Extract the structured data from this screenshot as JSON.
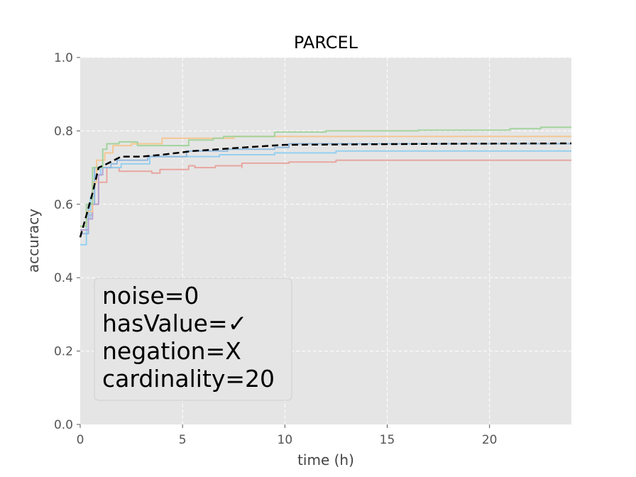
{
  "chart_data": {
    "type": "line",
    "title": "PARCEL",
    "xlabel": "time (h)",
    "ylabel": "accuracy",
    "xlim": [
      0,
      24
    ],
    "ylim": [
      0.0,
      1.0
    ],
    "xticks": [
      0,
      5,
      10,
      15,
      20
    ],
    "yticks": [
      0.0,
      0.2,
      0.4,
      0.6,
      0.8,
      1.0
    ],
    "grid": true,
    "annotation": [
      "noise=0",
      "hasValue=✓",
      "negation=X",
      "cardinality=20"
    ],
    "series": [
      {
        "color": "#e8a29c",
        "style": "solid",
        "step": true,
        "points": [
          [
            0,
            0.53
          ],
          [
            0.4,
            0.57
          ],
          [
            0.6,
            0.6
          ],
          [
            0.9,
            0.66
          ],
          [
            1.3,
            0.7
          ],
          [
            1.9,
            0.69
          ],
          [
            2.2,
            0.69
          ],
          [
            3.2,
            0.69
          ],
          [
            3.5,
            0.685
          ],
          [
            3.9,
            0.695
          ],
          [
            5.2,
            0.695
          ],
          [
            5.3,
            0.705
          ],
          [
            5.6,
            0.7
          ],
          [
            6.6,
            0.705
          ],
          [
            7.9,
            0.7
          ],
          [
            7.9,
            0.712
          ],
          [
            10.2,
            0.715
          ],
          [
            12.5,
            0.72
          ],
          [
            24,
            0.72
          ]
        ]
      },
      {
        "color": "#8fcff0",
        "style": "solid",
        "step": true,
        "points": [
          [
            0,
            0.49
          ],
          [
            0.3,
            0.56
          ],
          [
            0.5,
            0.62
          ],
          [
            0.7,
            0.68
          ],
          [
            1.0,
            0.7
          ],
          [
            1.6,
            0.7
          ],
          [
            2.0,
            0.71
          ],
          [
            3.4,
            0.73
          ],
          [
            3.5,
            0.73
          ],
          [
            5.0,
            0.73
          ],
          [
            6.8,
            0.735
          ],
          [
            9.5,
            0.74
          ],
          [
            12.5,
            0.745
          ],
          [
            24,
            0.745
          ]
        ]
      },
      {
        "color": "#8fb8de",
        "style": "solid",
        "step": true,
        "points": [
          [
            0,
            0.52
          ],
          [
            0.4,
            0.6
          ],
          [
            0.7,
            0.7
          ],
          [
            1.5,
            0.71
          ],
          [
            1.8,
            0.72
          ],
          [
            3.1,
            0.72
          ],
          [
            3.3,
            0.73
          ],
          [
            5.2,
            0.745
          ],
          [
            7.2,
            0.75
          ],
          [
            9.5,
            0.755
          ],
          [
            10.2,
            0.765
          ],
          [
            24,
            0.765
          ]
        ]
      },
      {
        "color": "#b7a1d3",
        "style": "solid",
        "step": true,
        "points": [
          [
            0,
            0.53
          ],
          [
            0.4,
            0.56
          ],
          [
            0.6,
            0.6
          ],
          [
            0.9,
            0.68
          ],
          [
            1.1,
            0.7
          ]
        ]
      },
      {
        "color": "#f5c58f",
        "style": "solid",
        "step": true,
        "points": [
          [
            0,
            0.54
          ],
          [
            0.3,
            0.58
          ],
          [
            0.6,
            0.66
          ],
          [
            0.8,
            0.72
          ],
          [
            1.2,
            0.74
          ],
          [
            1.6,
            0.76
          ],
          [
            2.5,
            0.765
          ],
          [
            4.0,
            0.78
          ],
          [
            5.8,
            0.78
          ],
          [
            7.5,
            0.785
          ],
          [
            12.0,
            0.785
          ],
          [
            24,
            0.785
          ]
        ]
      },
      {
        "color": "#9fd39a",
        "style": "solid",
        "step": true,
        "points": [
          [
            0,
            0.54
          ],
          [
            0.3,
            0.6
          ],
          [
            0.6,
            0.7
          ],
          [
            1.1,
            0.75
          ],
          [
            1.3,
            0.765
          ],
          [
            1.9,
            0.77
          ],
          [
            2.8,
            0.76
          ],
          [
            4.3,
            0.76
          ],
          [
            5.3,
            0.775
          ],
          [
            5.6,
            0.775
          ],
          [
            6.5,
            0.78
          ],
          [
            7.0,
            0.785
          ],
          [
            9.5,
            0.797
          ],
          [
            12.0,
            0.8
          ],
          [
            16.5,
            0.802
          ],
          [
            21.0,
            0.806
          ],
          [
            22.5,
            0.81
          ],
          [
            24,
            0.81
          ]
        ]
      },
      {
        "color": "#000000",
        "style": "dashed",
        "step": false,
        "points": [
          [
            0,
            0.51
          ],
          [
            0.3,
            0.57
          ],
          [
            0.6,
            0.63
          ],
          [
            0.9,
            0.7
          ],
          [
            1.3,
            0.71
          ],
          [
            2.0,
            0.73
          ],
          [
            3.0,
            0.73
          ],
          [
            4.0,
            0.735
          ],
          [
            5.5,
            0.745
          ],
          [
            8.0,
            0.755
          ],
          [
            10.0,
            0.762
          ],
          [
            13.0,
            0.763
          ],
          [
            18.0,
            0.765
          ],
          [
            24,
            0.766
          ]
        ]
      }
    ]
  }
}
